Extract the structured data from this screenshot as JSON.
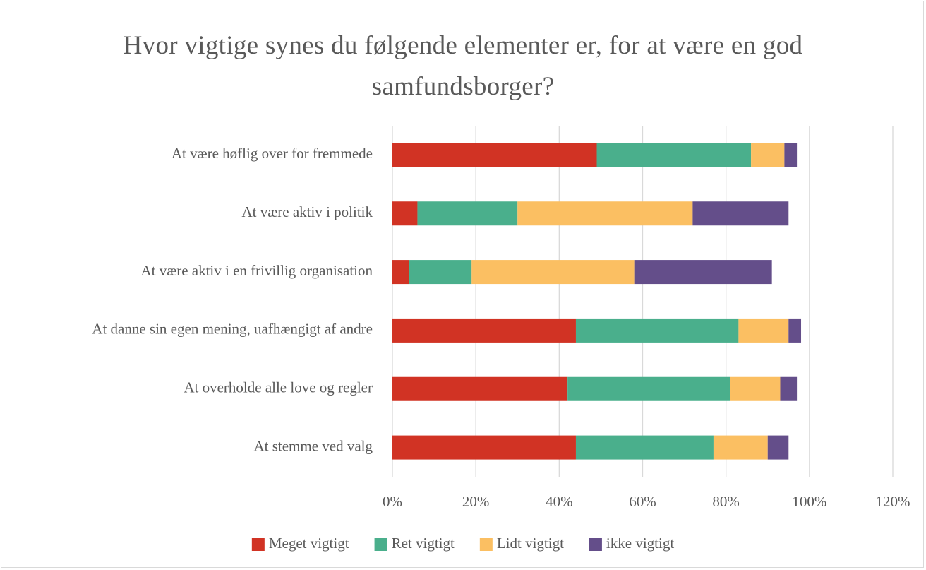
{
  "chart_data": {
    "type": "stacked_barh",
    "title": "Hvor vigtige synes du følgende elementer er, for at være en god samfundsborger?",
    "categories": [
      "At være høflig over for fremmede",
      "At være aktiv i politik",
      "At være aktiv i en frivillig organisation",
      "At danne sin egen mening, uafhængigt af andre",
      "At overholde alle love og regler",
      "At stemme ved valg"
    ],
    "series": [
      {
        "name": "Meget vigtigt",
        "color": "#d13324",
        "values": [
          49,
          6,
          4,
          44,
          42,
          44
        ]
      },
      {
        "name": "Ret vigtigt",
        "color": "#4aaf8c",
        "values": [
          37,
          24,
          15,
          39,
          39,
          33
        ]
      },
      {
        "name": "Lidt vigtigt",
        "color": "#fbbf62",
        "values": [
          8,
          42,
          39,
          12,
          12,
          13
        ]
      },
      {
        "name": "ikke vigtigt",
        "color": "#644e8a",
        "values": [
          3,
          23,
          33,
          3,
          4,
          5
        ]
      }
    ],
    "xlim": [
      0,
      120
    ],
    "xticks": [
      {
        "value": 0,
        "label": "0%"
      },
      {
        "value": 20,
        "label": "20%"
      },
      {
        "value": 40,
        "label": "40%"
      },
      {
        "value": 60,
        "label": "60%"
      },
      {
        "value": 80,
        "label": "80%"
      },
      {
        "value": 100,
        "label": "100%"
      },
      {
        "value": 120,
        "label": "120%"
      }
    ],
    "grid": true,
    "legend": "bottom"
  }
}
